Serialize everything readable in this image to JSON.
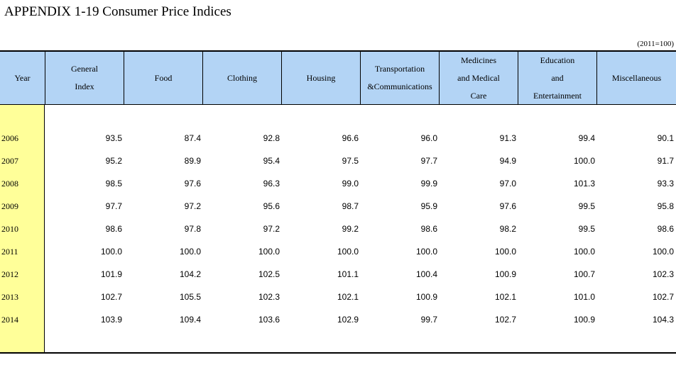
{
  "title": "APPENDIX 1-19  Consumer Price Indices",
  "base_note": "(2011=100)",
  "headers": [
    "Year",
    "General\nIndex",
    "Food",
    "Clothing",
    "Housing",
    "Transportation\n&Communications",
    "Medicines\nand Medical\nCare",
    "Education\nand\nEntertainment",
    "Miscellaneous"
  ],
  "rows": [
    {
      "year": "2006",
      "values": [
        "93.5",
        "87.4",
        "92.8",
        "96.6",
        "96.0",
        "91.3",
        "99.4",
        "90.1"
      ]
    },
    {
      "year": "2007",
      "values": [
        "95.2",
        "89.9",
        "95.4",
        "97.5",
        "97.7",
        "94.9",
        "100.0",
        "91.7"
      ]
    },
    {
      "year": "2008",
      "values": [
        "98.5",
        "97.6",
        "96.3",
        "99.0",
        "99.9",
        "97.0",
        "101.3",
        "93.3"
      ]
    },
    {
      "year": "2009",
      "values": [
        "97.7",
        "97.2",
        "95.6",
        "98.7",
        "95.9",
        "97.6",
        "99.5",
        "95.8"
      ]
    },
    {
      "year": "2010",
      "values": [
        "98.6",
        "97.8",
        "97.2",
        "99.2",
        "98.6",
        "98.2",
        "99.5",
        "98.6"
      ]
    },
    {
      "year": "2011",
      "values": [
        "100.0",
        "100.0",
        "100.0",
        "100.0",
        "100.0",
        "100.0",
        "100.0",
        "100.0"
      ]
    },
    {
      "year": "2012",
      "values": [
        "101.9",
        "104.2",
        "102.5",
        "101.1",
        "100.4",
        "100.9",
        "100.7",
        "102.3"
      ]
    },
    {
      "year": "2013",
      "values": [
        "102.7",
        "105.5",
        "102.3",
        "102.1",
        "100.9",
        "102.1",
        "101.0",
        "102.7"
      ]
    },
    {
      "year": "2014",
      "values": [
        "103.9",
        "109.4",
        "103.6",
        "102.9",
        "99.7",
        "102.7",
        "100.9",
        "104.3"
      ]
    }
  ],
  "colors": {
    "header_bg": "#b3d4f5",
    "year_bg": "#ffff99"
  }
}
